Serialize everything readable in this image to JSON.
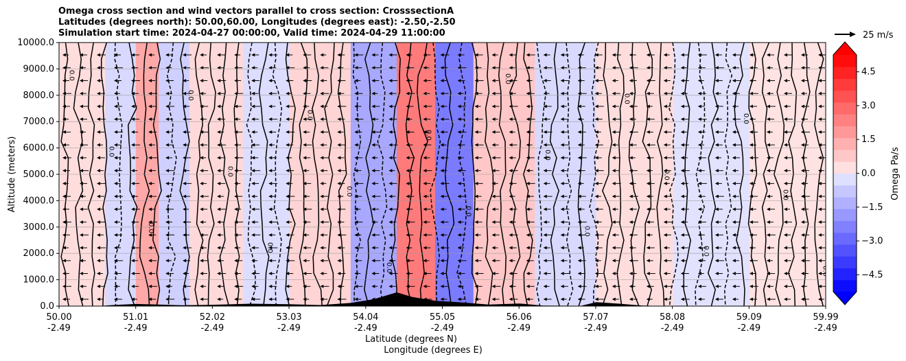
{
  "chart_data": {
    "type": "heatmap",
    "title_lines": [
      "Omega cross section and wind vectors parallel to cross section: CrosssectionA",
      "Latitudes (degrees north): 50.00,60.00, Longitudes (degrees east): -2.50,-2.50",
      "Simulation start time: 2024-04-27 00:00:00, Valid time: 2024-04-29 11:00:00"
    ],
    "ylabel": "Altitude (meters)",
    "xlabel_1": "Latitude (degrees N)",
    "xlabel_2": "Longitude (degrees E)",
    "ylim": [
      0,
      10000
    ],
    "xlim": [
      50.0,
      59.99
    ],
    "y_ticks": [
      {
        "value": 0,
        "label": "0.0"
      },
      {
        "value": 1000,
        "label": "1000.0"
      },
      {
        "value": 2000,
        "label": "2000.0"
      },
      {
        "value": 3000,
        "label": "3000.0"
      },
      {
        "value": 4000,
        "label": "4000.0"
      },
      {
        "value": 5000,
        "label": "5000.0"
      },
      {
        "value": 6000,
        "label": "6000.0"
      },
      {
        "value": 7000,
        "label": "7000.0"
      },
      {
        "value": 8000,
        "label": "8000.0"
      },
      {
        "value": 9000,
        "label": "9000.0"
      },
      {
        "value": 10000,
        "label": "10000.0"
      }
    ],
    "x_ticks": [
      {
        "lat": "50.00",
        "lon": "-2.49"
      },
      {
        "lat": "51.01",
        "lon": "-2.49"
      },
      {
        "lat": "52.02",
        "lon": "-2.49"
      },
      {
        "lat": "53.03",
        "lon": "-2.49"
      },
      {
        "lat": "54.04",
        "lon": "-2.49"
      },
      {
        "lat": "55.05",
        "lon": "-2.49"
      },
      {
        "lat": "56.06",
        "lon": "-2.49"
      },
      {
        "lat": "57.07",
        "lon": "-2.49"
      },
      {
        "lat": "58.08",
        "lon": "-2.49"
      },
      {
        "lat": "59.09",
        "lon": "-2.49"
      },
      {
        "lat": "59.99",
        "lon": "-2.49"
      }
    ],
    "colorbar": {
      "label": "Omega Pa/s",
      "range": [
        -5.25,
        5.25
      ],
      "ticks": [
        {
          "value": 4.5,
          "label": "4.5"
        },
        {
          "value": 3.0,
          "label": "3.0"
        },
        {
          "value": 1.5,
          "label": "1.5"
        },
        {
          "value": 0.0,
          "label": "0.0"
        },
        {
          "value": -1.5,
          "label": "−1.5"
        },
        {
          "value": -3.0,
          "label": "−3.0"
        },
        {
          "value": -4.5,
          "label": "−4.5"
        }
      ],
      "positive_color": "#ff0000",
      "negative_color": "#0000ff"
    },
    "quiver_key": {
      "label": "25 m/s"
    },
    "wind_direction": "northward-to-southward (arrows point left)",
    "contour_label": "0.0",
    "omega_regions": [
      {
        "lat_start": 50.0,
        "lat_end": 50.6,
        "omega": 0.3
      },
      {
        "lat_start": 50.6,
        "lat_end": 51.0,
        "omega": -0.4
      },
      {
        "lat_start": 51.0,
        "lat_end": 51.3,
        "omega": 1.5
      },
      {
        "lat_start": 51.3,
        "lat_end": 51.7,
        "omega": -0.6
      },
      {
        "lat_start": 51.7,
        "lat_end": 52.4,
        "omega": 0.4
      },
      {
        "lat_start": 52.4,
        "lat_end": 53.0,
        "omega": -0.3
      },
      {
        "lat_start": 53.0,
        "lat_end": 53.8,
        "omega": 0.5
      },
      {
        "lat_start": 53.8,
        "lat_end": 54.4,
        "omega": -1.5
      },
      {
        "lat_start": 54.4,
        "lat_end": 54.9,
        "omega": 2.5
      },
      {
        "lat_start": 54.9,
        "lat_end": 55.4,
        "omega": -2.5
      },
      {
        "lat_start": 55.4,
        "lat_end": 56.2,
        "omega": 0.8
      },
      {
        "lat_start": 56.2,
        "lat_end": 57.0,
        "omega": -0.4
      },
      {
        "lat_start": 57.0,
        "lat_end": 58.0,
        "omega": 0.3
      },
      {
        "lat_start": 58.0,
        "lat_end": 59.0,
        "omega": -0.2
      },
      {
        "lat_start": 59.0,
        "lat_end": 59.99,
        "omega": 0.2
      }
    ]
  }
}
